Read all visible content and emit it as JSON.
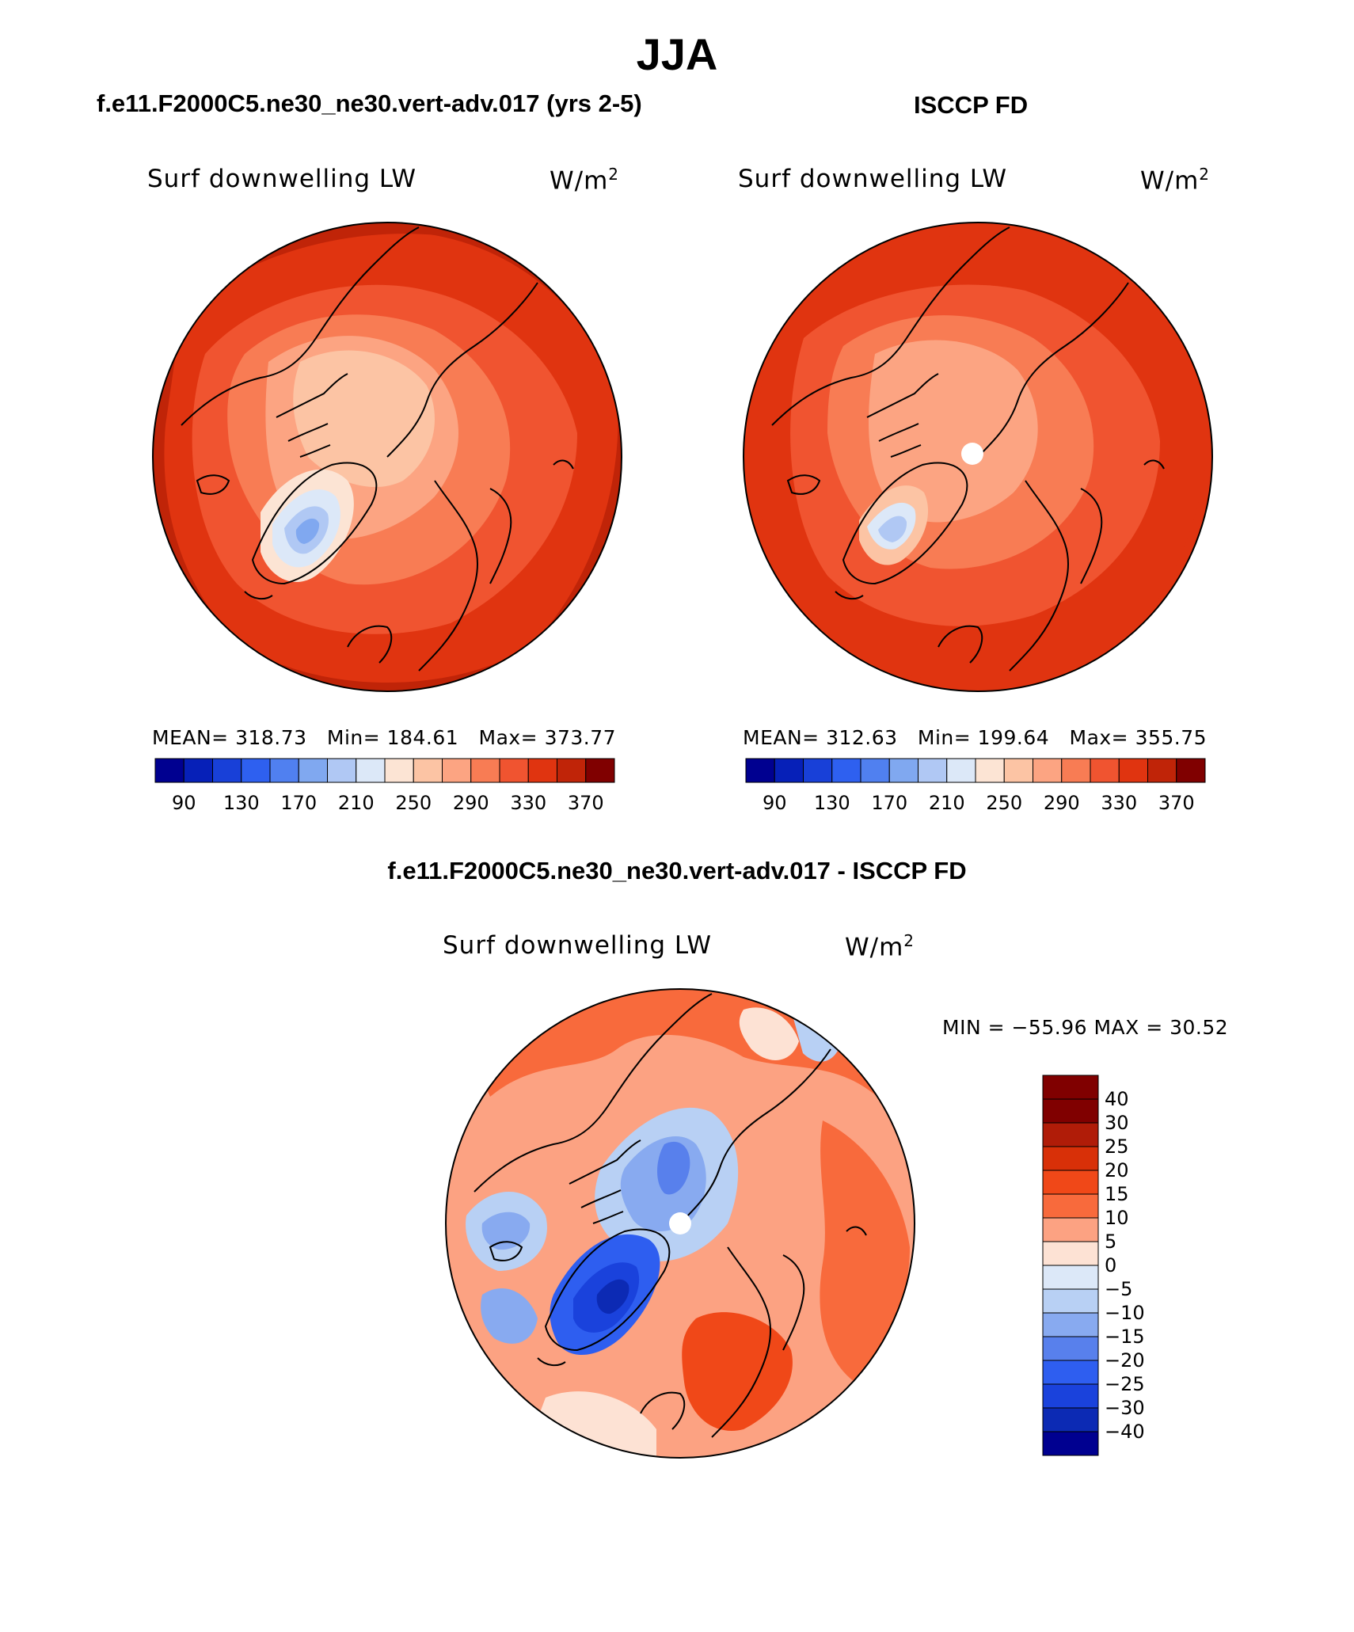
{
  "season": "JJA",
  "panels": {
    "model": {
      "case_title": "f.e11.F2000C5.ne30_ne30.vert-adv.017 (yrs 2-5)",
      "variable": "Surf downwelling LW",
      "units": "W/m",
      "units_sup": "2",
      "mean_label": "MEAN=",
      "mean_value": "318.73",
      "min_label": "Min=",
      "min_value": "184.61",
      "max_label": "Max=",
      "max_value": "373.77"
    },
    "obs": {
      "case_title": "ISCCP FD",
      "variable": "Surf downwelling LW",
      "units": "W/m",
      "units_sup": "2",
      "mean_label": "MEAN=",
      "mean_value": "312.63",
      "min_label": "Min=",
      "min_value": "199.64",
      "max_label": "Max=",
      "max_value": "355.75"
    },
    "diff": {
      "case_title": "f.e11.F2000C5.ne30_ne30.vert-adv.017 - ISCCP FD",
      "variable": "Surf downwelling LW",
      "units": "W/m",
      "units_sup": "2",
      "minmax_text": "MIN = −55.96 MAX =   30.52"
    }
  },
  "colorbars": {
    "absolute": {
      "colors": [
        "#000090",
        "#0620b8",
        "#1840d8",
        "#2e60f0",
        "#5080f0",
        "#80a8f0",
        "#b0c8f4",
        "#dce8f8",
        "#fce4d4",
        "#fcc4a4",
        "#fca482",
        "#f87c54",
        "#f05430",
        "#e03410",
        "#c02408",
        "#800000"
      ],
      "tick_labels": [
        "90",
        "130",
        "170",
        "210",
        "250",
        "290",
        "330",
        "370"
      ]
    },
    "difference": {
      "colors": [
        "#800000",
        "#b01c08",
        "#d83008",
        "#f04818",
        "#f86a3c",
        "#fca282",
        "#fde2d4",
        "#dce8f8",
        "#b8d0f4",
        "#88aaf0",
        "#5880ec",
        "#2e5ef0",
        "#1a42dc",
        "#0c2ab4",
        "#000090"
      ],
      "tick_labels": [
        "40",
        "30",
        "25",
        "20",
        "15",
        "10",
        "5",
        "0",
        "−5",
        "−10",
        "−15",
        "−20",
        "−25",
        "−30",
        "−40"
      ]
    }
  },
  "map": {
    "projection": "north polar stereographic",
    "region": "Arctic",
    "pole_missing_marker": true
  }
}
